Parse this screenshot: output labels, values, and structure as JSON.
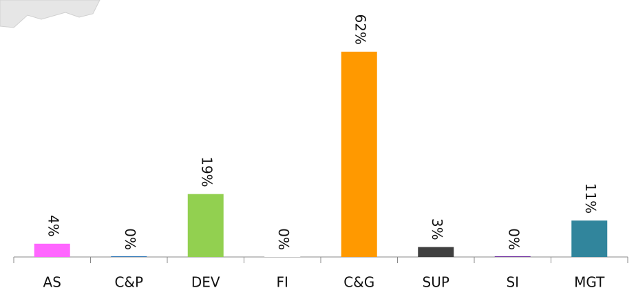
{
  "chart_data": {
    "type": "bar",
    "categories": [
      "AS",
      "C&P",
      "DEV",
      "FI",
      "C&G",
      "SUP",
      "SI",
      "MGT"
    ],
    "values": [
      4,
      0,
      19,
      0,
      62,
      3,
      0,
      11
    ],
    "value_labels": [
      "4%",
      "0%",
      "19%",
      "0%",
      "62%",
      "3%",
      "0%",
      "11%"
    ],
    "colors": [
      "#ff66ff",
      "#2e75b6",
      "#92d050",
      "#ffffff",
      "#ff9900",
      "#404040",
      "#7030a0",
      "#31859c"
    ]
  }
}
